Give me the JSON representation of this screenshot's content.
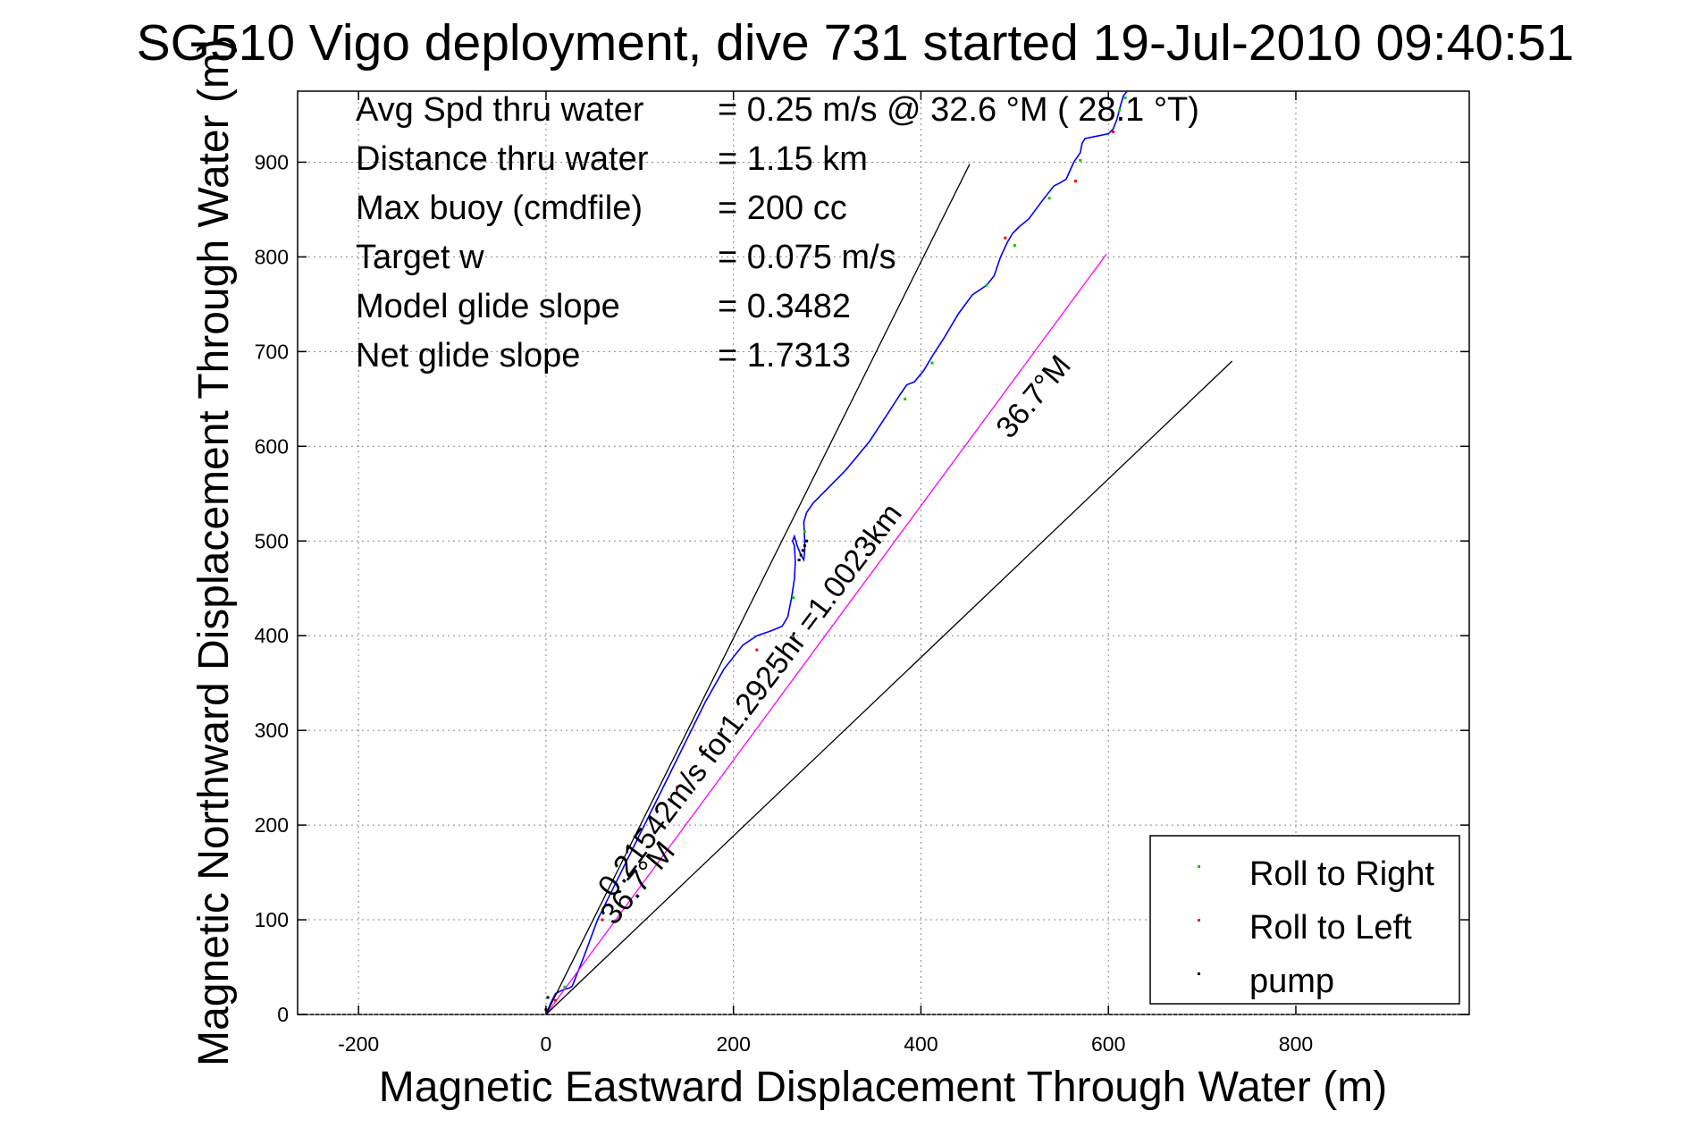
{
  "chart_data": {
    "type": "line",
    "title": "SG510 Vigo deployment, dive 731 started 19-Jul-2010 09:40:51",
    "xlabel": "Magnetic Eastward Displacement Through Water (m)",
    "ylabel": "Magnetic Northward Displacement Through Water (m)",
    "xlim": [
      -265,
      985
    ],
    "ylim": [
      0,
      975
    ],
    "xticks": [
      -200,
      0,
      200,
      400,
      600,
      800
    ],
    "yticks": [
      0,
      100,
      200,
      300,
      400,
      500,
      600,
      700,
      800,
      900
    ],
    "grid": true,
    "legend_position": "bottom-right",
    "colors": {
      "track": "#0000ff",
      "heading": "#ff00ff",
      "roll_right": "#00cc00",
      "roll_left": "#ff0000",
      "pump": "#000000",
      "axes": "#000000"
    },
    "stats": [
      {
        "label": "Avg Spd thru water",
        "value": "=  0.25 m/s @  32.6 °M ( 28.1 °T)"
      },
      {
        "label": "Distance thru water",
        "value": "=  1.15 km"
      },
      {
        "label": "Max buoy (cmdfile)",
        "value": "= 200 cc"
      },
      {
        "label": "Target w",
        "value": "= 0.075 m/s"
      },
      {
        "label": "Model glide slope",
        "value": "= 0.3482"
      },
      {
        "label": "Net glide slope",
        "value": "= 1.7313"
      }
    ],
    "annotations": {
      "cone_upper_label": "36.7°M",
      "cone_lower_label": "36.7°M",
      "heading_label": "0.21542m/s for1.2925hr =1.0023km"
    },
    "legend": [
      {
        "name": "Roll to Right",
        "color": "#00cc00"
      },
      {
        "name": "Roll to Left",
        "color": "#ff0000"
      },
      {
        "name": "pump",
        "color": "#000000"
      }
    ],
    "series": [
      {
        "name": "track",
        "color": "#0000ff",
        "x": [
          0,
          5,
          10,
          18,
          25,
          28,
          40,
          55,
          70,
          90,
          110,
          130,
          150,
          170,
          190,
          210,
          225,
          240,
          252,
          258,
          262,
          265,
          266,
          265,
          263,
          265,
          268,
          272,
          275,
          276,
          276,
          275,
          278,
          285,
          300,
          320,
          345,
          365,
          378,
          385,
          393,
          403,
          412,
          425,
          440,
          455,
          470,
          478,
          485,
          492,
          498,
          505,
          515,
          530,
          542,
          548,
          555,
          563,
          570,
          572,
          575,
          590,
          600,
          605,
          609,
          613,
          616,
          620
        ],
        "y": [
          0,
          12,
          22,
          26,
          28,
          30,
          60,
          100,
          130,
          170,
          210,
          250,
          290,
          330,
          365,
          390,
          400,
          405,
          410,
          420,
          440,
          460,
          478,
          495,
          500,
          505,
          495,
          485,
          480,
          490,
          500,
          520,
          530,
          540,
          555,
          575,
          605,
          635,
          655,
          665,
          668,
          680,
          695,
          715,
          740,
          760,
          770,
          780,
          800,
          815,
          825,
          832,
          840,
          860,
          875,
          878,
          882,
          900,
          910,
          920,
          925,
          928,
          930,
          935,
          945,
          960,
          970,
          975
        ]
      },
      {
        "name": "heading",
        "color": "#ff00ff",
        "x": [
          0,
          598
        ],
        "y": [
          0,
          803
        ]
      },
      {
        "name": "cone-upper",
        "color": "#000000",
        "x": [
          0,
          452
        ],
        "y": [
          0,
          898
        ]
      },
      {
        "name": "cone-lower",
        "color": "#000000",
        "x": [
          0,
          732
        ],
        "y": [
          0,
          690
        ]
      }
    ],
    "markers": {
      "roll_right": {
        "x": [
          20,
          264,
          276,
          383,
          412,
          470,
          500,
          537,
          570,
          612,
          618
        ],
        "y": [
          29,
          440,
          510,
          650,
          688,
          770,
          812,
          862,
          902,
          955,
          968
        ]
      },
      "roll_left": {
        "x": [
          10,
          60,
          140,
          225,
          490,
          565,
          605
        ],
        "y": [
          15,
          100,
          240,
          385,
          820,
          880,
          932
        ]
      },
      "pump": {
        "x": [
          0,
          2,
          270,
          272,
          274,
          276,
          278
        ],
        "y": [
          5,
          18,
          480,
          485,
          490,
          495,
          500
        ]
      }
    }
  }
}
